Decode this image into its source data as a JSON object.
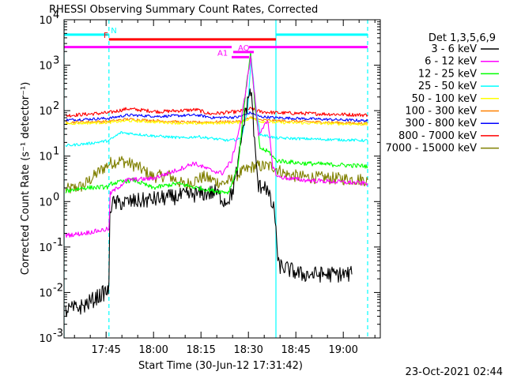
{
  "chart_data": {
    "type": "line",
    "title": "RHESSI Observing Summary Count Rates, Corrected",
    "ylabel": "Corrected Count Rate (s⁻¹ detector⁻¹)",
    "xlabel": "Start Time (30-Jun-12 17:31:42)",
    "footer_date": "23-Oct-2021 02:44",
    "y_scale": "log",
    "ylim": [
      0.001,
      10000
    ],
    "xlim_minutes": [
      0,
      100
    ],
    "x_ticks": [
      {
        "label": "17:45",
        "minute": 13.3
      },
      {
        "label": "18:00",
        "minute": 28.3
      },
      {
        "label": "18:15",
        "minute": 43.3
      },
      {
        "label": "18:30",
        "minute": 58.3
      },
      {
        "label": "18:45",
        "minute": 73.3
      },
      {
        "label": "19:00",
        "minute": 88.3
      }
    ],
    "y_ticks": [
      {
        "base": "10",
        "exp": "-3"
      },
      {
        "base": "10",
        "exp": "-2"
      },
      {
        "base": "10",
        "exp": "-1"
      },
      {
        "base": "10",
        "exp": "0"
      },
      {
        "base": "10",
        "exp": "1"
      },
      {
        "base": "10",
        "exp": "2"
      },
      {
        "base": "10",
        "exp": "3"
      },
      {
        "base": "10",
        "exp": "4"
      }
    ],
    "legend": {
      "title": "Det 1,3,5,6,9",
      "placement": "right",
      "entries": [
        {
          "label": "3 - 6 keV",
          "color": "#000000"
        },
        {
          "label": "6 - 12 keV",
          "color": "#ff00ff"
        },
        {
          "label": "12 - 25 keV",
          "color": "#00ff00"
        },
        {
          "label": "25 - 50 keV",
          "color": "#00ffff"
        },
        {
          "label": "50 - 100 keV",
          "color": "#ffff00"
        },
        {
          "label": "100 - 300 keV",
          "color": "#ff8000"
        },
        {
          "label": "300 - 800 keV",
          "color": "#0000ff"
        },
        {
          "label": "800 - 7000 keV",
          "color": "#ff0000"
        },
        {
          "label": "7000 - 15000 keV",
          "color": "#808000"
        }
      ]
    },
    "vertical_markers": [
      {
        "minute": 0.0,
        "color": "#00ffff",
        "style": "solid"
      },
      {
        "minute": 14.2,
        "color": "#00ffff",
        "style": "dashed"
      },
      {
        "minute": 67.0,
        "color": "#00ffff",
        "style": "solid"
      },
      {
        "minute": 96.0,
        "color": "#00ffff",
        "style": "dashed"
      }
    ],
    "flag_bars": [
      {
        "label": "N",
        "color": "#00ffff",
        "y": 4700,
        "segments": [
          [
            0.0,
            14.2
          ],
          [
            67.0,
            96.0
          ]
        ],
        "label_minute": 14.8
      },
      {
        "label": "F",
        "color": "#ff0000",
        "y": 3700,
        "segments": [
          [
            14.2,
            67.0
          ]
        ],
        "label_minute": 12.5
      },
      {
        "label": "",
        "color": "#ff00ff",
        "y": 2500,
        "segments": [
          [
            0.0,
            53.0
          ],
          [
            58.5,
            67.0
          ],
          [
            67.0,
            96.0
          ]
        ],
        "label_minute": 0
      },
      {
        "label": "AQ",
        "color": "#ff00ff",
        "y": 1950,
        "segments": [
          [
            53.5,
            60.0
          ]
        ],
        "label_minute": 55.0
      },
      {
        "label": "A1",
        "color": "#ff00ff",
        "y": 1500,
        "segments": [
          [
            53.0,
            58.5
          ]
        ],
        "label_minute": 48.5
      }
    ],
    "series": [
      {
        "name": "3 - 6 keV",
        "color": "#000000",
        "noise": 0.18,
        "points": [
          [
            0.5,
            0.004
          ],
          [
            6,
            0.005
          ],
          [
            13.8,
            0.011
          ],
          [
            14.2,
            0.012
          ],
          [
            14.5,
            0.7
          ],
          [
            15.2,
            0.9
          ],
          [
            25,
            1.05
          ],
          [
            40,
            1.4
          ],
          [
            48,
            1.6
          ],
          [
            51,
            1.0
          ],
          [
            53,
            1.4
          ],
          [
            55,
            6
          ],
          [
            56.5,
            40
          ],
          [
            57.5,
            100
          ],
          [
            58.8,
            300
          ],
          [
            59.5,
            150
          ],
          [
            60.5,
            10
          ],
          [
            61.5,
            2
          ],
          [
            63.5,
            2.5
          ],
          [
            65,
            1.2
          ],
          [
            66.5,
            0.6
          ],
          [
            67,
            0.3
          ],
          [
            67.6,
            0.04
          ],
          [
            75,
            0.025
          ],
          [
            91,
            0.025
          ]
        ]
      },
      {
        "name": "6 - 12 keV",
        "color": "#ff00ff",
        "noise": 0.05,
        "points": [
          [
            0.5,
            0.18
          ],
          [
            6,
            0.2
          ],
          [
            14.2,
            0.25
          ],
          [
            14.6,
            1.5
          ],
          [
            20,
            3
          ],
          [
            28,
            3.2
          ],
          [
            36,
            5
          ],
          [
            41,
            7
          ],
          [
            46,
            5
          ],
          [
            50,
            4.2
          ],
          [
            53,
            8
          ],
          [
            56,
            60
          ],
          [
            58,
            500
          ],
          [
            59,
            1500
          ],
          [
            60.5,
            150
          ],
          [
            61.5,
            30
          ],
          [
            63,
            45
          ],
          [
            64.5,
            55
          ],
          [
            66,
            6
          ],
          [
            67.5,
            3.5
          ],
          [
            75,
            3
          ],
          [
            96,
            2.5
          ]
        ]
      },
      {
        "name": "12 - 25 keV",
        "color": "#00ff00",
        "noise": 0.05,
        "points": [
          [
            0.5,
            1.7
          ],
          [
            6,
            2
          ],
          [
            14.2,
            2.1
          ],
          [
            15,
            2.5
          ],
          [
            22,
            3
          ],
          [
            28,
            2
          ],
          [
            36,
            2.5
          ],
          [
            42,
            2
          ],
          [
            48,
            1.7
          ],
          [
            52,
            1.6
          ],
          [
            55,
            6
          ],
          [
            57.5,
            300
          ],
          [
            59,
            1800
          ],
          [
            60.5,
            100
          ],
          [
            62,
            15
          ],
          [
            65,
            12
          ],
          [
            67,
            8
          ],
          [
            75,
            7
          ],
          [
            96,
            6
          ]
        ]
      },
      {
        "name": "25 - 50 keV",
        "color": "#00ffff",
        "noise": 0.03,
        "points": [
          [
            0.5,
            17
          ],
          [
            8,
            19
          ],
          [
            14.2,
            22
          ],
          [
            18,
            33
          ],
          [
            28,
            28
          ],
          [
            38,
            25
          ],
          [
            42,
            27
          ],
          [
            52,
            22
          ],
          [
            56,
            24
          ],
          [
            58,
            100
          ],
          [
            59.2,
            1400
          ],
          [
            60.5,
            150
          ],
          [
            62,
            30
          ],
          [
            67,
            25
          ],
          [
            96,
            22
          ]
        ]
      },
      {
        "name": "50 - 100 keV",
        "color": "#ffff00",
        "noise": 0.03,
        "points": [
          [
            0.5,
            52
          ],
          [
            14.2,
            55
          ],
          [
            20,
            60
          ],
          [
            40,
            52
          ],
          [
            56,
            55
          ],
          [
            59,
            70
          ],
          [
            62,
            58
          ],
          [
            67,
            55
          ],
          [
            96,
            50
          ]
        ]
      },
      {
        "name": "100 - 300 keV",
        "color": "#ff8000",
        "noise": 0.03,
        "points": [
          [
            0.5,
            55
          ],
          [
            14.2,
            58
          ],
          [
            20,
            65
          ],
          [
            40,
            55
          ],
          [
            56,
            58
          ],
          [
            59,
            70
          ],
          [
            62,
            62
          ],
          [
            67,
            60
          ],
          [
            96,
            52
          ]
        ]
      },
      {
        "name": "300 - 800 keV",
        "color": "#0000ff",
        "noise": 0.03,
        "points": [
          [
            0.5,
            62
          ],
          [
            14.2,
            68
          ],
          [
            20,
            80
          ],
          [
            30,
            75
          ],
          [
            42,
            80
          ],
          [
            47,
            70
          ],
          [
            55,
            72
          ],
          [
            59,
            90
          ],
          [
            62,
            74
          ],
          [
            67,
            70
          ],
          [
            96,
            60
          ]
        ]
      },
      {
        "name": "800 - 7000 keV",
        "color": "#ff0000",
        "noise": 0.04,
        "points": [
          [
            0.5,
            78
          ],
          [
            14.2,
            90
          ],
          [
            20,
            110
          ],
          [
            30,
            95
          ],
          [
            42,
            105
          ],
          [
            46,
            85
          ],
          [
            55,
            95
          ],
          [
            59,
            110
          ],
          [
            62,
            95
          ],
          [
            67,
            90
          ],
          [
            96,
            80
          ]
        ]
      },
      {
        "name": "7000 - 15000 keV",
        "color": "#808000",
        "noise": 0.14,
        "points": [
          [
            0.5,
            1.8
          ],
          [
            6,
            2.2
          ],
          [
            11,
            4.5
          ],
          [
            14.5,
            7
          ],
          [
            18,
            8
          ],
          [
            23,
            6
          ],
          [
            28,
            3.5
          ],
          [
            33,
            3.8
          ],
          [
            38,
            2.3
          ],
          [
            44,
            3.5
          ],
          [
            50,
            2.5
          ],
          [
            53,
            3
          ],
          [
            55,
            4
          ],
          [
            60,
            6
          ],
          [
            66,
            6
          ],
          [
            70,
            4
          ],
          [
            75,
            3.5
          ],
          [
            96,
            3
          ]
        ]
      }
    ]
  }
}
